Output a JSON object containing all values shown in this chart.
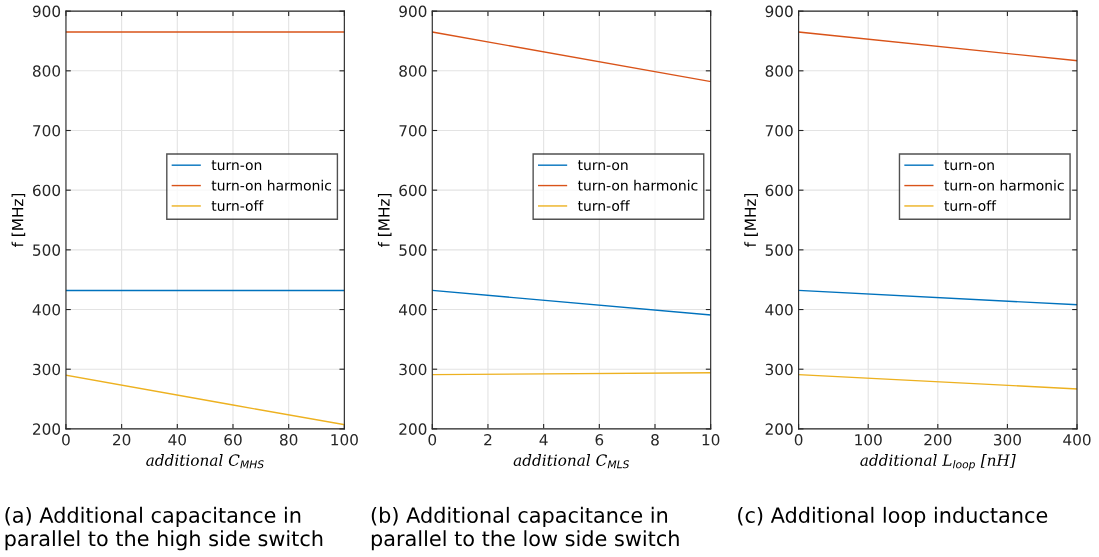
{
  "chart_data": [
    {
      "type": "line",
      "xlabel": "additional C$_{MHS}$",
      "ylabel": "f [MHz]",
      "xlim": [
        0,
        100
      ],
      "ylim": [
        200,
        900
      ],
      "xticks": [
        0,
        20,
        40,
        60,
        80,
        100
      ],
      "yticks": [
        200,
        300,
        400,
        500,
        600,
        700,
        800,
        900
      ],
      "grid": true,
      "legend": "right",
      "annotations": [
        "(a) Additional capacitance in parallel to the high side switch"
      ],
      "series": [
        {
          "name": "turn-on",
          "color": "#0072bd",
          "x": [
            0,
            100
          ],
          "values": [
            432,
            432
          ]
        },
        {
          "name": "turn-on harmonic",
          "color": "#d95319",
          "x": [
            0,
            100
          ],
          "values": [
            865,
            865
          ]
        },
        {
          "name": "turn-off",
          "color": "#edb120",
          "x": [
            0,
            60,
            100
          ],
          "values": [
            290,
            240,
            207
          ]
        }
      ]
    },
    {
      "type": "line",
      "xlabel": "additional C$_{MLS}$",
      "ylabel": "f [MHz]",
      "xlim": [
        0,
        10
      ],
      "ylim": [
        200,
        900
      ],
      "xticks": [
        0,
        2,
        4,
        6,
        8,
        10
      ],
      "yticks": [
        200,
        300,
        400,
        500,
        600,
        700,
        800,
        900
      ],
      "grid": true,
      "legend": "right",
      "annotations": [
        "(b) Additional capacitance in parallel to the low side switch"
      ],
      "series": [
        {
          "name": "turn-on",
          "color": "#0072bd",
          "x": [
            0,
            10
          ],
          "values": [
            432,
            391
          ]
        },
        {
          "name": "turn-on harmonic",
          "color": "#d95319",
          "x": [
            0,
            10
          ],
          "values": [
            865,
            782
          ]
        },
        {
          "name": "turn-off",
          "color": "#edb120",
          "x": [
            0,
            10
          ],
          "values": [
            291,
            294
          ]
        }
      ]
    },
    {
      "type": "line",
      "xlabel": "additional L$_{loop}$ [nH]",
      "ylabel": "f [MHz]",
      "xlim": [
        0,
        400
      ],
      "ylim": [
        200,
        900
      ],
      "xticks": [
        0,
        100,
        200,
        300,
        400
      ],
      "yticks": [
        200,
        300,
        400,
        500,
        600,
        700,
        800,
        900
      ],
      "grid": true,
      "legend": "right",
      "annotations": [
        "(c) Additional loop inductance"
      ],
      "series": [
        {
          "name": "turn-on",
          "color": "#0072bd",
          "x": [
            0,
            400
          ],
          "values": [
            432,
            408
          ]
        },
        {
          "name": "turn-on harmonic",
          "color": "#d95319",
          "x": [
            0,
            400
          ],
          "values": [
            865,
            817
          ]
        },
        {
          "name": "turn-off",
          "color": "#edb120",
          "x": [
            0,
            400
          ],
          "values": [
            291,
            267
          ]
        }
      ]
    }
  ]
}
